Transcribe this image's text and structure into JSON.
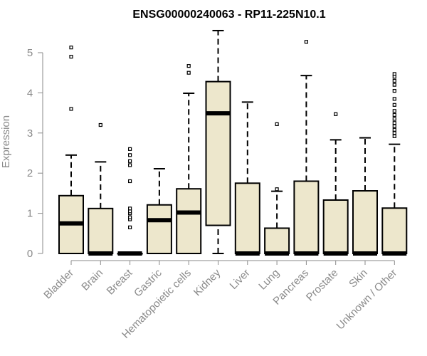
{
  "chart_data": {
    "type": "boxplot",
    "title": "ENSG00000240063 - RP11-225N10.1",
    "ylabel": "Expression",
    "xlabel": "",
    "ylim": [
      0,
      5.6
    ],
    "yticks": [
      0,
      1,
      2,
      3,
      4,
      5
    ],
    "grid": false,
    "legend": "none",
    "colors": {
      "box_fill": "#ede7cc",
      "stroke": "#000000",
      "axis_text": "#8a8a8a"
    },
    "categories": [
      "Bladder",
      "Brain",
      "Breast",
      "Gastric",
      "Hematopoietic cells",
      "Kidney",
      "Liver",
      "Lung",
      "Pancreas",
      "Prostate",
      "Skin",
      "Unknown / Other"
    ],
    "boxes": [
      {
        "name": "Bladder",
        "whisker_low": 0,
        "q1": 0,
        "median": 0.75,
        "q3": 1.44,
        "whisker_high": 2.45,
        "outliers": [
          3.6,
          4.9,
          5.13
        ]
      },
      {
        "name": "Brain",
        "whisker_low": 0,
        "q1": 0,
        "median": 0,
        "q3": 1.12,
        "whisker_high": 2.28,
        "outliers": [
          3.2
        ]
      },
      {
        "name": "Breast",
        "whisker_low": 0,
        "q1": 0,
        "median": 0,
        "q3": 0,
        "whisker_high": 0,
        "outliers": [
          0.65,
          0.85,
          0.9,
          1.0,
          1.05,
          1.12,
          1.8,
          2.2,
          2.3,
          2.45,
          2.6
        ]
      },
      {
        "name": "Gastric",
        "whisker_low": 0,
        "q1": 0,
        "median": 0.83,
        "q3": 1.21,
        "whisker_high": 2.11,
        "outliers": []
      },
      {
        "name": "Hematopoietic cells",
        "whisker_low": 0,
        "q1": 0,
        "median": 1.02,
        "q3": 1.61,
        "whisker_high": 3.99,
        "outliers": [
          4.5,
          4.67
        ]
      },
      {
        "name": "Kidney",
        "whisker_low": 0,
        "q1": 0.7,
        "median": 3.49,
        "q3": 4.28,
        "whisker_high": 5.55,
        "outliers": []
      },
      {
        "name": "Liver",
        "whisker_low": 0,
        "q1": 0,
        "median": 0,
        "q3": 1.75,
        "whisker_high": 3.77,
        "outliers": []
      },
      {
        "name": "Lung",
        "whisker_low": 0,
        "q1": 0,
        "median": 0,
        "q3": 0.63,
        "whisker_high": 1.55,
        "outliers": [
          1.6,
          3.22
        ]
      },
      {
        "name": "Pancreas",
        "whisker_low": 0,
        "q1": 0,
        "median": 0,
        "q3": 1.8,
        "whisker_high": 4.43,
        "outliers": [
          5.27
        ]
      },
      {
        "name": "Prostate",
        "whisker_low": 0,
        "q1": 0,
        "median": 0,
        "q3": 1.33,
        "whisker_high": 2.83,
        "outliers": [
          3.47
        ]
      },
      {
        "name": "Skin",
        "whisker_low": 0,
        "q1": 0,
        "median": 0,
        "q3": 1.56,
        "whisker_high": 2.88,
        "outliers": []
      },
      {
        "name": "Unknown / Other",
        "whisker_low": 0,
        "q1": 0,
        "median": 0,
        "q3": 1.13,
        "whisker_high": 2.72,
        "outliers": [
          2.92,
          3.0,
          3.08,
          3.17,
          3.25,
          3.35,
          3.45,
          3.55,
          3.7,
          3.85,
          4.05,
          4.2,
          4.3,
          4.4,
          4.47
        ]
      }
    ]
  }
}
